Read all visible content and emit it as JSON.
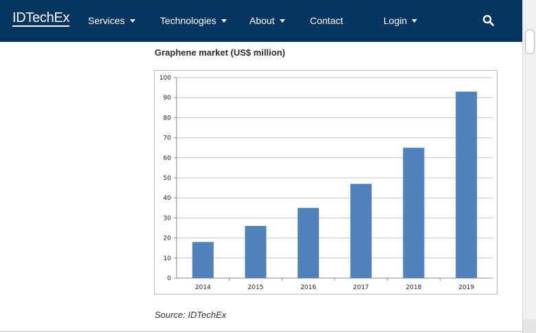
{
  "header": {
    "logo": "IDTechEx",
    "nav": [
      {
        "label": "Services",
        "dropdown": true
      },
      {
        "label": "Technologies",
        "dropdown": true
      },
      {
        "label": "About",
        "dropdown": true
      },
      {
        "label": "Contact",
        "dropdown": false
      },
      {
        "label": "Login",
        "dropdown": true
      }
    ],
    "search_icon": "search-icon"
  },
  "colors": {
    "navbar": "#06365f",
    "bar": "#4f81bd",
    "text": "#2b2b2b"
  },
  "content": {
    "chart_heading": "Graphene market (US$ million)",
    "source": "Source: IDTechEx"
  },
  "chart_data": {
    "type": "bar",
    "title": "",
    "xlabel": "",
    "ylabel": "",
    "categories": [
      "2014",
      "2015",
      "2016",
      "2017",
      "2018",
      "2019"
    ],
    "values": [
      18,
      26,
      35,
      47,
      65,
      93
    ],
    "ylim": [
      0,
      100
    ],
    "yticks": [
      0,
      10,
      20,
      30,
      40,
      50,
      60,
      70,
      80,
      90,
      100
    ],
    "grid": true,
    "legend": "none"
  }
}
